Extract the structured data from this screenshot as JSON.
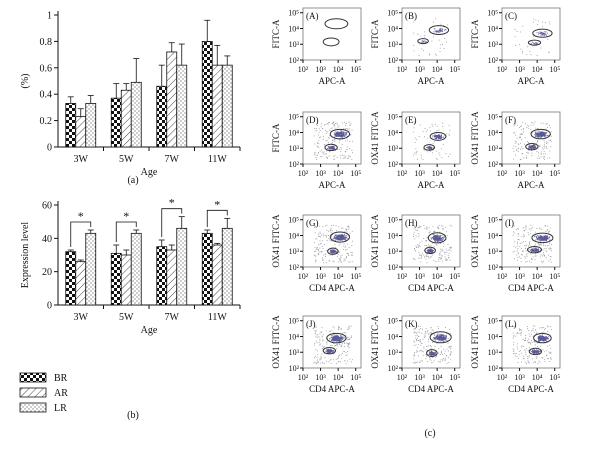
{
  "chart_data": [
    {
      "id": "a",
      "type": "bar",
      "panel_label": "(a)",
      "title": "",
      "xlabel": "Age",
      "ylabel": "(%)",
      "ylim": [
        0,
        1
      ],
      "yticks": [
        "0",
        "0.2",
        "0.4",
        "0.6",
        "0.8",
        "1"
      ],
      "categories": [
        "3W",
        "5W",
        "7W",
        "11W"
      ],
      "series": [
        {
          "name": "BR",
          "pattern": "checker",
          "values": [
            0.33,
            0.37,
            0.46,
            0.8
          ],
          "errors": [
            0.05,
            0.11,
            0.16,
            0.16
          ]
        },
        {
          "name": "AR",
          "pattern": "diagonal",
          "values": [
            0.23,
            0.43,
            0.72,
            0.62
          ],
          "errors": [
            0.06,
            0.05,
            0.07,
            0.15
          ]
        },
        {
          "name": "LR",
          "pattern": "dots",
          "values": [
            0.33,
            0.49,
            0.62,
            0.62
          ],
          "errors": [
            0.06,
            0.18,
            0.16,
            0.07
          ]
        }
      ]
    },
    {
      "id": "b",
      "type": "bar",
      "panel_label": "(b)",
      "title": "",
      "xlabel": "Age",
      "ylabel": "Expression level",
      "ylim": [
        0,
        60
      ],
      "yticks": [
        "0",
        "20",
        "40",
        "60"
      ],
      "categories": [
        "3W",
        "5W",
        "7W",
        "11W"
      ],
      "series": [
        {
          "name": "BR",
          "pattern": "checker",
          "values": [
            32,
            31,
            35,
            43
          ],
          "errors": [
            1,
            5,
            4,
            2
          ]
        },
        {
          "name": "AR",
          "pattern": "diagonal",
          "values": [
            26,
            30,
            33,
            36
          ],
          "errors": [
            1,
            3,
            3,
            1
          ]
        },
        {
          "name": "LR",
          "pattern": "dots",
          "values": [
            43,
            43,
            46,
            46
          ],
          "errors": [
            2,
            2,
            7,
            6
          ]
        }
      ],
      "significance": {
        "symbol": "*",
        "between": [
          "BR",
          "LR"
        ],
        "categories": [
          "3W",
          "5W",
          "7W",
          "11W"
        ]
      }
    },
    {
      "id": "c",
      "type": "scatter",
      "panel_label": "(c)",
      "title": "",
      "description": "Grid of 12 flow cytometry dot plots",
      "x_tick_labels": [
        "10²",
        "10³",
        "10⁴",
        "10⁵"
      ],
      "y_tick_labels": [
        "10²",
        "10³",
        "10⁴",
        "10⁵"
      ],
      "xlim": [
        2,
        5.3
      ],
      "ylim": [
        2,
        5.3
      ],
      "plots": [
        {
          "label": "(A)",
          "xlabel": "APC-A",
          "ylabel": "FITC-A",
          "density": "none",
          "gates": [
            {
              "cx": 3.9,
              "cy": 4.3,
              "rx": 0.65,
              "ry": 0.32
            },
            {
              "cx": 3.6,
              "cy": 3.15,
              "rx": 0.45,
              "ry": 0.25
            }
          ]
        },
        {
          "label": "(B)",
          "xlabel": "APC-A",
          "ylabel": "FITC-A",
          "density": "sparse",
          "gates": [
            {
              "cx": 4.1,
              "cy": 3.9,
              "rx": 0.55,
              "ry": 0.28
            },
            {
              "cx": 3.2,
              "cy": 3.2,
              "rx": 0.3,
              "ry": 0.16
            }
          ]
        },
        {
          "label": "(C)",
          "xlabel": "APC-A",
          "ylabel": "FITC-A",
          "density": "sparse",
          "gates": [
            {
              "cx": 4.3,
              "cy": 3.7,
              "rx": 0.55,
              "ry": 0.26
            },
            {
              "cx": 3.85,
              "cy": 3.1,
              "rx": 0.35,
              "ry": 0.16
            }
          ]
        },
        {
          "label": "(D)",
          "xlabel": "APC-A",
          "ylabel": "FITC-A",
          "density": "dense",
          "gates": [
            {
              "cx": 4.1,
              "cy": 3.9,
              "rx": 0.55,
              "ry": 0.3
            },
            {
              "cx": 3.6,
              "cy": 3.05,
              "rx": 0.35,
              "ry": 0.2
            }
          ]
        },
        {
          "label": "(E)",
          "xlabel": "APC-A",
          "ylabel": "OX41 FITC-A",
          "density": "medium",
          "gates": [
            {
              "cx": 4.05,
              "cy": 3.75,
              "rx": 0.45,
              "ry": 0.25
            },
            {
              "cx": 3.55,
              "cy": 3.05,
              "rx": 0.3,
              "ry": 0.18
            }
          ]
        },
        {
          "label": "(F)",
          "xlabel": "APC-A",
          "ylabel": "OX41 FITC-A",
          "density": "dense",
          "gates": [
            {
              "cx": 4.2,
              "cy": 3.9,
              "rx": 0.55,
              "ry": 0.3
            },
            {
              "cx": 3.7,
              "cy": 3.1,
              "rx": 0.35,
              "ry": 0.2
            }
          ]
        },
        {
          "label": "(G)",
          "xlabel": "CD4 APC-A",
          "ylabel": "OX41 FITC-A",
          "density": "dense",
          "gates": [
            {
              "cx": 4.1,
              "cy": 3.9,
              "rx": 0.55,
              "ry": 0.32
            },
            {
              "cx": 3.7,
              "cy": 3.0,
              "rx": 0.3,
              "ry": 0.2
            }
          ]
        },
        {
          "label": "(H)",
          "xlabel": "CD4 APC-A",
          "ylabel": "OX41 FITC-A",
          "density": "dense",
          "gates": [
            {
              "cx": 4.0,
              "cy": 3.85,
              "rx": 0.5,
              "ry": 0.32
            },
            {
              "cx": 3.6,
              "cy": 3.05,
              "rx": 0.3,
              "ry": 0.2
            }
          ]
        },
        {
          "label": "(I)",
          "xlabel": "CD4 APC-A",
          "ylabel": "OX41 FITC-A",
          "density": "dense",
          "gates": [
            {
              "cx": 4.3,
              "cy": 3.85,
              "rx": 0.6,
              "ry": 0.3
            },
            {
              "cx": 3.85,
              "cy": 3.1,
              "rx": 0.4,
              "ry": 0.2
            }
          ]
        },
        {
          "label": "(J)",
          "xlabel": "CD4 APC-A",
          "ylabel": "OX41 FITC-A",
          "density": "dense",
          "gates": [
            {
              "cx": 3.9,
              "cy": 3.9,
              "rx": 0.55,
              "ry": 0.3
            },
            {
              "cx": 3.5,
              "cy": 3.1,
              "rx": 0.35,
              "ry": 0.2
            }
          ]
        },
        {
          "label": "(K)",
          "xlabel": "CD4 APC-A",
          "ylabel": "OX41 FITC-A",
          "density": "dense",
          "gates": [
            {
              "cx": 4.2,
              "cy": 3.95,
              "rx": 0.6,
              "ry": 0.35
            },
            {
              "cx": 3.7,
              "cy": 2.95,
              "rx": 0.3,
              "ry": 0.22
            }
          ]
        },
        {
          "label": "(L)",
          "xlabel": "CD4 APC-A",
          "ylabel": "OX41 FITC-A",
          "density": "dense",
          "gates": [
            {
              "cx": 4.3,
              "cy": 3.9,
              "rx": 0.5,
              "ry": 0.3
            },
            {
              "cx": 3.9,
              "cy": 3.05,
              "rx": 0.35,
              "ry": 0.2
            }
          ]
        }
      ]
    }
  ],
  "legend": {
    "entries": [
      {
        "name": "BR",
        "pattern": "checker"
      },
      {
        "name": "AR",
        "pattern": "diagonal"
      },
      {
        "name": "LR",
        "pattern": "dots"
      }
    ]
  },
  "colors": {
    "ink": "#111111",
    "dot": "#5a5a9a",
    "dot_light": "#9a9aa6"
  }
}
